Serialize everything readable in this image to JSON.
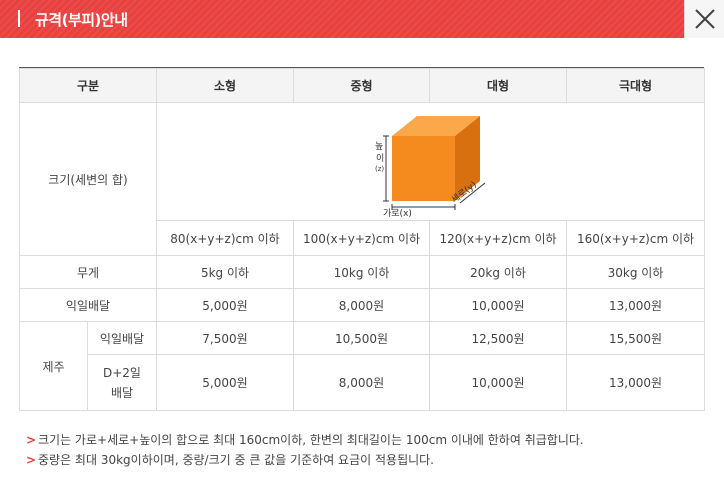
{
  "header": {
    "title": "규격(부피)안내"
  },
  "table": {
    "columns": [
      "구분",
      "소형",
      "중형",
      "대형",
      "극대형"
    ],
    "size_row_label": "크기(세변의 합)",
    "box_labels": {
      "height": "높이(z)",
      "height_chars": [
        "높",
        "이",
        "(z)"
      ],
      "width": "가로(x)",
      "depth": "세로(y)"
    },
    "dimensions": [
      "80(x+y+z)cm 이하",
      "100(x+y+z)cm 이하",
      "120(x+y+z)cm 이하",
      "160(x+y+z)cm 이하"
    ],
    "weight": {
      "label": "무게",
      "values": [
        "5kg 이하",
        "10kg 이하",
        "20kg 이하",
        "30kg 이하"
      ]
    },
    "next_day": {
      "label": "익일배달",
      "values": [
        "5,000원",
        "8,000원",
        "10,000원",
        "13,000원"
      ]
    },
    "jeju": {
      "label": "제주",
      "next_day": {
        "label": "익일배달",
        "values": [
          "7,500원",
          "10,500원",
          "12,500원",
          "15,500원"
        ]
      },
      "d2": {
        "label_line1": "D+2일",
        "label_line2": "배달",
        "values": [
          "5,000원",
          "8,000원",
          "10,000원",
          "13,000원"
        ]
      }
    }
  },
  "notes": {
    "mark": ">",
    "lines": [
      "크기는 가로+세로+높이의 합으로 최대 160cm이하, 한변의 최대길이는 100cm 이내에 한하여 취급합니다.",
      "중량은 최대 30kg이하이며, 중량/크기 중 큰 값을 기준하여 요금이 적용됩니다."
    ]
  },
  "colors": {
    "header_bg": "#e8413f",
    "box_front": "#f58a1f",
    "box_top": "#fba84a",
    "box_side": "#d9700f"
  }
}
